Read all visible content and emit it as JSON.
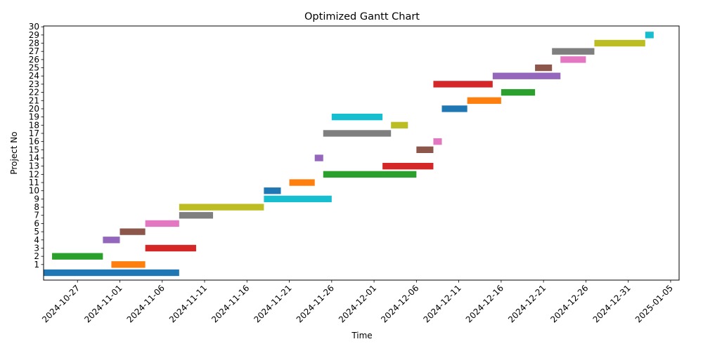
{
  "chart_data": {
    "type": "bar",
    "orientation": "horizontal",
    "title": "Optimized Gantt Chart",
    "xlabel": "Time",
    "ylabel": "Project No",
    "x_is_date": true,
    "xlim": [
      "2024-10-23",
      "2025-01-06"
    ],
    "x_ticks": [
      "2024-10-27",
      "2024-11-01",
      "2024-11-06",
      "2024-11-11",
      "2024-11-16",
      "2024-11-21",
      "2024-11-26",
      "2024-12-01",
      "2024-12-06",
      "2024-12-11",
      "2024-12-16",
      "2024-12-21",
      "2024-12-26",
      "2024-12-31",
      "2025-01-05"
    ],
    "y_ticks": [
      "1",
      "2",
      "3",
      "4",
      "5",
      "6",
      "7",
      "8",
      "9",
      "10",
      "11",
      "12",
      "13",
      "14",
      "15",
      "16",
      "17",
      "18",
      "19",
      "20",
      "21",
      "22",
      "23",
      "24",
      "25",
      "26",
      "27",
      "28",
      "29",
      "30"
    ],
    "ylim": [
      -0.9,
      30.1
    ],
    "grid": false,
    "legend": "none",
    "tasks": [
      {
        "project": 1,
        "y": 0,
        "start": "2024-10-23",
        "end": "2024-11-08",
        "color": "#1f77b4"
      },
      {
        "project": 2,
        "y": 1,
        "start": "2024-10-31",
        "end": "2024-11-04",
        "color": "#ff7f0e"
      },
      {
        "project": 3,
        "y": 2,
        "start": "2024-10-24",
        "end": "2024-10-30",
        "color": "#2ca02c"
      },
      {
        "project": 4,
        "y": 3,
        "start": "2024-11-04",
        "end": "2024-11-10",
        "color": "#d62728"
      },
      {
        "project": 5,
        "y": 4,
        "start": "2024-10-30",
        "end": "2024-11-01",
        "color": "#9467bd"
      },
      {
        "project": 6,
        "y": 5,
        "start": "2024-11-01",
        "end": "2024-11-04",
        "color": "#8c564b"
      },
      {
        "project": 7,
        "y": 6,
        "start": "2024-11-04",
        "end": "2024-11-08",
        "color": "#e377c2"
      },
      {
        "project": 8,
        "y": 7,
        "start": "2024-11-08",
        "end": "2024-11-12",
        "color": "#7f7f7f"
      },
      {
        "project": 9,
        "y": 8,
        "start": "2024-11-08",
        "end": "2024-11-18",
        "color": "#bcbd22"
      },
      {
        "project": 10,
        "y": 9,
        "start": "2024-11-18",
        "end": "2024-11-26",
        "color": "#17becf"
      },
      {
        "project": 11,
        "y": 10,
        "start": "2024-11-18",
        "end": "2024-11-20",
        "color": "#1f77b4"
      },
      {
        "project": 12,
        "y": 11,
        "start": "2024-11-21",
        "end": "2024-11-24",
        "color": "#ff7f0e"
      },
      {
        "project": 13,
        "y": 12,
        "start": "2024-11-25",
        "end": "2024-12-06",
        "color": "#2ca02c"
      },
      {
        "project": 14,
        "y": 13,
        "start": "2024-12-02",
        "end": "2024-12-08",
        "color": "#d62728"
      },
      {
        "project": 15,
        "y": 14,
        "start": "2024-11-24",
        "end": "2024-11-25",
        "color": "#9467bd"
      },
      {
        "project": 16,
        "y": 15,
        "start": "2024-12-06",
        "end": "2024-12-08",
        "color": "#8c564b"
      },
      {
        "project": 17,
        "y": 16,
        "start": "2024-12-08",
        "end": "2024-12-09",
        "color": "#e377c2"
      },
      {
        "project": 18,
        "y": 17,
        "start": "2024-11-25",
        "end": "2024-12-03",
        "color": "#7f7f7f"
      },
      {
        "project": 19,
        "y": 18,
        "start": "2024-12-03",
        "end": "2024-12-05",
        "color": "#bcbd22"
      },
      {
        "project": 20,
        "y": 19,
        "start": "2024-11-26",
        "end": "2024-12-02",
        "color": "#17becf"
      },
      {
        "project": 21,
        "y": 20,
        "start": "2024-12-09",
        "end": "2024-12-12",
        "color": "#1f77b4"
      },
      {
        "project": 22,
        "y": 21,
        "start": "2024-12-12",
        "end": "2024-12-16",
        "color": "#ff7f0e"
      },
      {
        "project": 23,
        "y": 22,
        "start": "2024-12-16",
        "end": "2024-12-20",
        "color": "#2ca02c"
      },
      {
        "project": 24,
        "y": 23,
        "start": "2024-12-08",
        "end": "2024-12-15",
        "color": "#d62728"
      },
      {
        "project": 25,
        "y": 24,
        "start": "2024-12-15",
        "end": "2024-12-23",
        "color": "#9467bd"
      },
      {
        "project": 26,
        "y": 25,
        "start": "2024-12-20",
        "end": "2024-12-22",
        "color": "#8c564b"
      },
      {
        "project": 27,
        "y": 26,
        "start": "2024-12-23",
        "end": "2024-12-26",
        "color": "#e377c2"
      },
      {
        "project": 28,
        "y": 27,
        "start": "2024-12-22",
        "end": "2024-12-27",
        "color": "#7f7f7f"
      },
      {
        "project": 29,
        "y": 28,
        "start": "2024-12-27",
        "end": "2025-01-02",
        "color": "#bcbd22"
      },
      {
        "project": 30,
        "y": 29,
        "start": "2025-01-02",
        "end": "2025-01-03",
        "color": "#17becf"
      }
    ]
  }
}
